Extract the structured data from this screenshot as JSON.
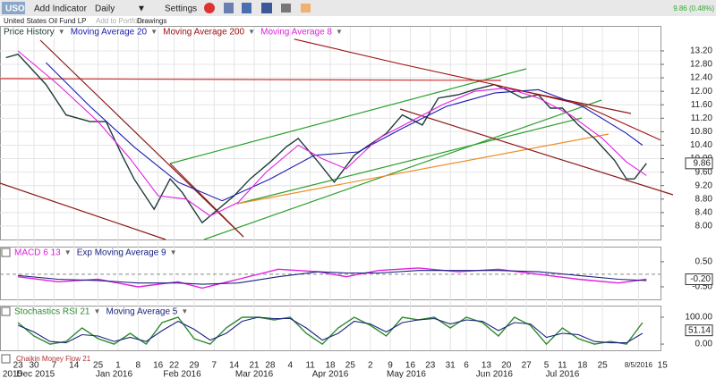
{
  "toolbar": {
    "symbol": "USO",
    "add_indicator": "Add Indicator",
    "period": "Daily",
    "settings": "Settings",
    "name": "United States Oil Fund LP",
    "add_to_portfolio": "Add to Portfolio",
    "drawings": "Drawings",
    "quote": "9.86 (0.48%)",
    "extra_panel": "Chaikin Money Flow 21"
  },
  "chart_data": [
    {
      "type": "line",
      "xlim": [
        -4.5,
        160.5
      ],
      "ylim": [
        7.6,
        13.65
      ],
      "yticks": [
        {
          "value": 13.2,
          "label": "13.20"
        },
        {
          "value": 12.8,
          "label": "12.80"
        },
        {
          "value": 12.4,
          "label": "12.40"
        },
        {
          "value": 12,
          "label": "12.00"
        },
        {
          "value": 11.6,
          "label": "11.60"
        },
        {
          "value": 11.2,
          "label": "11.20"
        },
        {
          "value": 10.8,
          "label": "10.80"
        },
        {
          "value": 10.4,
          "label": "10.40"
        },
        {
          "value": 10,
          "label": "10.00"
        },
        {
          "value": 9.6,
          "label": "9.60"
        },
        {
          "value": 9.2,
          "label": "9.20"
        },
        {
          "value": 8.8,
          "label": "8.80"
        },
        {
          "value": 8.4,
          "label": "8.40"
        },
        {
          "value": 8,
          "label": "8.00"
        }
      ],
      "xticks": [
        {
          "value": 0,
          "label": "23"
        },
        {
          "value": 4,
          "label": "30"
        },
        {
          "value": 9,
          "label": "7"
        },
        {
          "value": 14,
          "label": "14"
        },
        {
          "value": 20,
          "label": "25"
        },
        {
          "value": 25,
          "label": "1"
        },
        {
          "value": 30,
          "label": "8"
        },
        {
          "value": 35,
          "label": "16"
        },
        {
          "value": 39,
          "label": "22"
        },
        {
          "value": 44,
          "label": "29"
        },
        {
          "value": 49,
          "label": "7"
        },
        {
          "value": 54,
          "label": "14"
        },
        {
          "value": 59,
          "label": "21"
        },
        {
          "value": 63,
          "label": "28"
        },
        {
          "value": 68,
          "label": "4"
        },
        {
          "value": 73,
          "label": "11"
        },
        {
          "value": 78,
          "label": "18"
        },
        {
          "value": 83,
          "label": "25"
        },
        {
          "value": 88,
          "label": "2"
        },
        {
          "value": 93,
          "label": "9"
        },
        {
          "value": 98,
          "label": "16"
        },
        {
          "value": 103,
          "label": "23"
        },
        {
          "value": 108,
          "label": "31"
        },
        {
          "value": 112,
          "label": "6"
        },
        {
          "value": 117,
          "label": "13"
        },
        {
          "value": 122,
          "label": "20"
        },
        {
          "value": 127,
          "label": "27"
        },
        {
          "value": 132,
          "label": "5"
        },
        {
          "value": 136,
          "label": "11"
        },
        {
          "value": 141,
          "label": "18"
        },
        {
          "value": 146,
          "label": "25"
        },
        {
          "value": 155,
          "label": "8/5/2016"
        },
        {
          "value": 161,
          "label": "15"
        }
      ],
      "month_labels": [
        {
          "value": -2.7,
          "label": "2015"
        },
        {
          "value": 4.4,
          "label": "Dec 2015"
        },
        {
          "value": 24,
          "label": "Jan 2016"
        },
        {
          "value": 41,
          "label": "Feb 2016"
        },
        {
          "value": 59,
          "label": "Mar 2016"
        },
        {
          "value": 78,
          "label": "Apr 2016"
        },
        {
          "value": 97,
          "label": "May 2016"
        },
        {
          "value": 119,
          "label": "Jun 2016"
        },
        {
          "value": 136,
          "label": "Jul 2016"
        }
      ],
      "last_value": 9.86,
      "last_label": "9.86",
      "series": [
        {
          "name": "Price History",
          "color": "#1f3a3a",
          "x": [
            -3,
            0,
            7,
            12,
            18,
            22,
            26,
            29,
            34,
            38,
            41,
            46,
            49,
            54,
            58,
            63,
            67,
            70,
            75,
            79,
            84,
            87,
            92,
            96,
            101,
            105,
            110,
            114,
            119,
            122,
            126,
            130,
            133,
            136,
            140,
            144,
            149,
            152,
            154,
            157
          ],
          "values": [
            13.0,
            13.1,
            12.2,
            11.3,
            11.1,
            11.1,
            10.1,
            9.4,
            8.5,
            9.4,
            9.0,
            8.1,
            8.4,
            8.9,
            9.4,
            9.9,
            10.35,
            10.6,
            9.9,
            9.3,
            10.1,
            10.35,
            10.75,
            11.3,
            11.0,
            11.8,
            11.9,
            12.05,
            12.2,
            12.05,
            11.8,
            11.9,
            11.5,
            11.5,
            11.0,
            10.6,
            9.95,
            9.4,
            9.4,
            9.86
          ]
        },
        {
          "name": "Moving Average 20",
          "color": "#1c1cb0",
          "x": [
            7,
            18,
            29,
            40,
            51,
            63,
            74,
            85,
            96,
            107,
            119,
            130,
            141,
            152,
            156
          ],
          "values": [
            12.85,
            11.55,
            10.35,
            9.3,
            8.75,
            9.4,
            10.1,
            10.2,
            10.9,
            11.55,
            11.95,
            12.05,
            11.55,
            10.75,
            10.4
          ]
        },
        {
          "name": "Moving Average 200",
          "color": "#a01010",
          "x": [
            69,
            96,
            119,
            141,
            160.5
          ],
          "values": [
            13.55,
            12.8,
            12.2,
            11.6,
            10.55
          ]
        },
        {
          "name": "Moving Average 8",
          "color": "#e020e0",
          "x": [
            0,
            10,
            20,
            28,
            35,
            42,
            48,
            55,
            62,
            70,
            76,
            82,
            90,
            98,
            106,
            114,
            122,
            130,
            138,
            146,
            152,
            157
          ],
          "values": [
            13.2,
            12.2,
            11.1,
            10.0,
            8.9,
            8.8,
            8.3,
            8.7,
            9.6,
            10.4,
            10.0,
            9.7,
            10.6,
            11.1,
            11.6,
            12.0,
            12.1,
            11.8,
            11.3,
            10.6,
            9.9,
            9.5
          ]
        }
      ]
    },
    {
      "type": "line",
      "xlim": [
        -4.5,
        160.5
      ],
      "ylim": [
        -1.0,
        1.1
      ],
      "reference_line": 0,
      "yticks": [
        {
          "value": 0.5,
          "label": "0.50"
        },
        {
          "value": -0.5,
          "label": "-0.50"
        }
      ],
      "last_value": -0.2,
      "last_label": "-0.20",
      "x": [
        0,
        10,
        20,
        30,
        40,
        46,
        55,
        65,
        75,
        82,
        90,
        100,
        110,
        120,
        130,
        140,
        150,
        157
      ],
      "series": [
        {
          "name": "MACD 6 13",
          "color": "#e020e0",
          "values": [
            -0.1,
            -0.3,
            -0.2,
            -0.5,
            -0.3,
            -0.55,
            -0.2,
            0.2,
            0.1,
            -0.1,
            0.15,
            0.25,
            0.1,
            0.2,
            0.0,
            -0.2,
            -0.35,
            -0.2
          ]
        },
        {
          "name": "Exp Moving Average 9",
          "color": "#1a237e",
          "values": [
            -0.05,
            -0.2,
            -0.25,
            -0.35,
            -0.35,
            -0.4,
            -0.35,
            -0.1,
            0.1,
            0.05,
            0.05,
            0.15,
            0.15,
            0.15,
            0.1,
            -0.05,
            -0.2,
            -0.25
          ]
        }
      ]
    },
    {
      "type": "line",
      "xlim": [
        -4.5,
        160.5
      ],
      "ylim": [
        -23,
        143
      ],
      "yticks": [
        {
          "value": 100,
          "label": "100.00"
        },
        {
          "value": 0,
          "label": "0.00"
        }
      ],
      "last_value": 51.14,
      "last_label": "51.14",
      "x": [
        0,
        4,
        8,
        12,
        16,
        20,
        24,
        28,
        32,
        36,
        40,
        44,
        48,
        52,
        56,
        60,
        64,
        68,
        72,
        76,
        80,
        84,
        88,
        92,
        96,
        100,
        104,
        108,
        112,
        116,
        120,
        124,
        128,
        132,
        136,
        140,
        144,
        148,
        152,
        156
      ],
      "series": [
        {
          "name": "Stochastics RSI 21",
          "color": "#2e8b2e",
          "values": [
            80,
            30,
            0,
            10,
            60,
            20,
            0,
            40,
            0,
            80,
            100,
            20,
            0,
            60,
            100,
            100,
            90,
            100,
            40,
            0,
            60,
            100,
            70,
            30,
            100,
            90,
            100,
            60,
            100,
            80,
            30,
            100,
            70,
            0,
            60,
            20,
            0,
            10,
            0,
            80
          ]
        },
        {
          "name": "Moving Average 5",
          "color": "#1a237e",
          "values": [
            70,
            45,
            10,
            5,
            35,
            30,
            10,
            25,
            10,
            50,
            85,
            55,
            15,
            40,
            85,
            100,
            95,
            95,
            60,
            15,
            40,
            85,
            75,
            45,
            80,
            90,
            95,
            75,
            90,
            85,
            50,
            80,
            75,
            25,
            40,
            35,
            10,
            5,
            5,
            40
          ]
        }
      ]
    }
  ]
}
